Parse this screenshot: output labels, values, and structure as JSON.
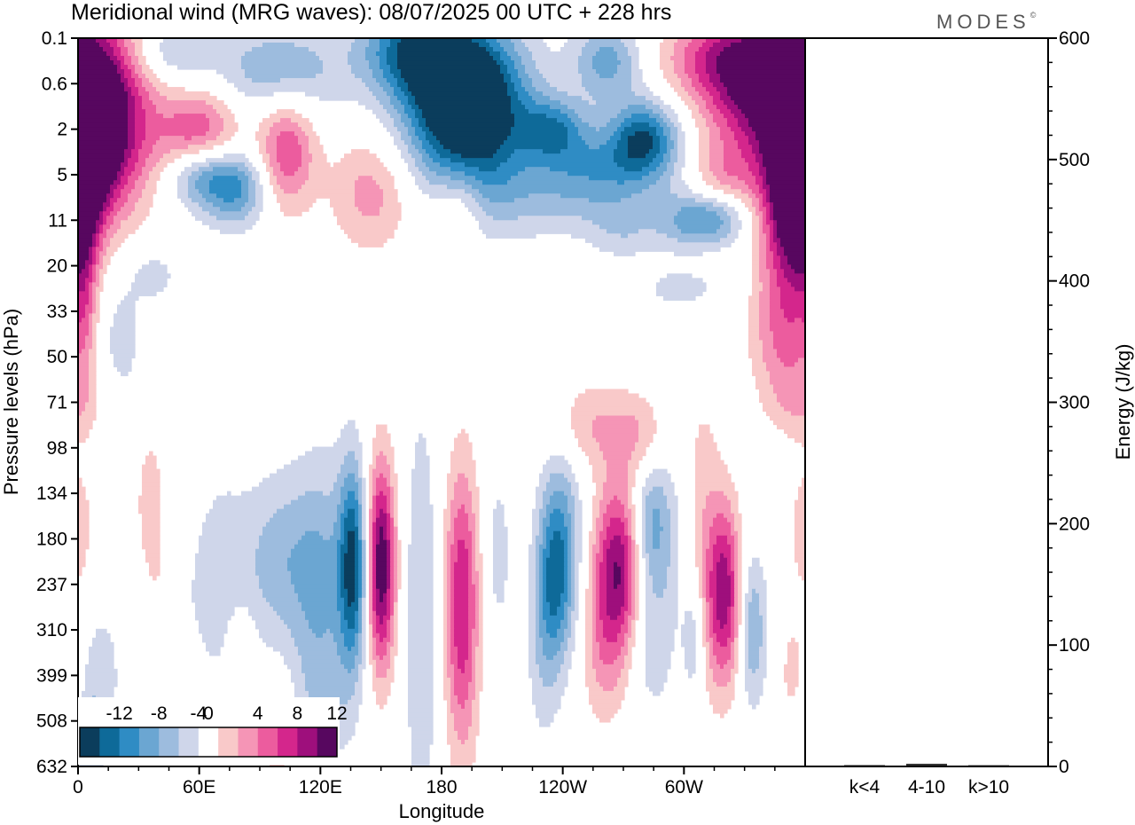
{
  "title": "Meridional wind (MRG waves):  08/07/2025  00 UTC  + 228 hrs",
  "brand": "MODES",
  "brand_mark": "©",
  "colors": {
    "neg": [
      "#0b3d5c",
      "#0e6a99",
      "#2f8cc4",
      "#6ba6d2",
      "#9dbcde",
      "#cfd6ea"
    ],
    "pos": [
      "#f9c9c9",
      "#f595b6",
      "#ec5c9e",
      "#d4268c",
      "#9e0f7c",
      "#57075f"
    ],
    "zero": "#ffffff"
  },
  "chart_data": [
    {
      "type": "heatmap",
      "variable": "Meridional wind",
      "xlabel": "Longitude",
      "ylabel": "Pressure levels (hPa)",
      "x_ticks": [
        "0",
        "60E",
        "120E",
        "180",
        "120W",
        "60W"
      ],
      "x_tick_values": [
        0,
        60,
        120,
        180,
        240,
        300
      ],
      "xlim": [
        0,
        360
      ],
      "y_ticks": [
        "0.1",
        "0.6",
        "2",
        "5",
        "11",
        "20",
        "33",
        "50",
        "71",
        "98",
        "134",
        "180",
        "237",
        "310",
        "399",
        "508",
        "632"
      ],
      "colorbar": {
        "labels": [
          "-12",
          "-8",
          "-4",
          "0",
          "4",
          "8",
          "12"
        ],
        "levels": [
          -14,
          -12,
          -10,
          -8,
          -6,
          -4,
          -2,
          2,
          4,
          6,
          8,
          10,
          12,
          14
        ]
      },
      "features": [
        {
          "lon": 10,
          "level": 2.1,
          "value": 14,
          "wx": 18,
          "wy": 1.3
        },
        {
          "lon": 22,
          "level": 0.2,
          "value": 4,
          "wx": 14,
          "wy": 0.8
        },
        {
          "lon": 0,
          "level": 4.2,
          "value": 6,
          "wx": 8,
          "wy": 1.2
        },
        {
          "lon": 60,
          "level": 2.1,
          "value": 8,
          "wx": 14,
          "wy": 0.7
        },
        {
          "lon": 103,
          "level": 2.5,
          "value": 8,
          "wx": 10,
          "wy": 0.9
        },
        {
          "lon": 145,
          "level": 3.4,
          "value": 5,
          "wx": 14,
          "wy": 0.9
        },
        {
          "lon": 190,
          "level": 3.4,
          "value": 3,
          "wx": 8,
          "wy": 0.6
        },
        {
          "lon": 182,
          "level": 4.1,
          "value": 3,
          "wx": 10,
          "wy": 0.5
        },
        {
          "lon": 265,
          "level": 2.2,
          "value": 3,
          "wx": 10,
          "wy": 0.6
        },
        {
          "lon": 340,
          "level": 1.0,
          "value": 14,
          "wx": 22,
          "wy": 1.1
        },
        {
          "lon": 360,
          "level": 2.2,
          "value": 11,
          "wx": 10,
          "wy": 1.4
        },
        {
          "lon": 350,
          "level": 3.9,
          "value": 8,
          "wx": 10,
          "wy": 1.2
        },
        {
          "lon": 315,
          "level": 0.4,
          "value": 5,
          "wx": 20,
          "wy": 0.6
        },
        {
          "lon": 320,
          "level": 3.0,
          "value": 4,
          "wx": 12,
          "wy": 0.5
        },
        {
          "lon": 350,
          "level": 6.5,
          "value": 6,
          "wx": 12,
          "wy": 1.0
        },
        {
          "lon": 358,
          "level": 8.0,
          "value": 3,
          "wx": 12,
          "wy": 0.6
        },
        {
          "lon": 190,
          "level": 1.2,
          "value": -14,
          "wx": 22,
          "wy": 1.1
        },
        {
          "lon": 165,
          "level": 0.2,
          "value": -9,
          "wx": 18,
          "wy": 0.7
        },
        {
          "lon": 195,
          "level": 2.1,
          "value": -7,
          "wx": 18,
          "wy": 1.3
        },
        {
          "lon": 235,
          "level": 2.0,
          "value": -8,
          "wx": 12,
          "wy": 0.5
        },
        {
          "lon": 278,
          "level": 2.2,
          "value": -12,
          "wx": 14,
          "wy": 0.6
        },
        {
          "lon": 260,
          "level": 2.8,
          "value": -5,
          "wx": 20,
          "wy": 0.6
        },
        {
          "lon": 262,
          "level": 0.5,
          "value": -7,
          "wx": 12,
          "wy": 0.6
        },
        {
          "lon": 100,
          "level": 0.7,
          "value": -6,
          "wx": 22,
          "wy": 0.7
        },
        {
          "lon": 40,
          "level": 0.3,
          "value": -5,
          "wx": 18,
          "wy": 0.5
        },
        {
          "lon": 60,
          "level": 3.0,
          "value": -7,
          "wx": 12,
          "wy": 0.5
        },
        {
          "lon": 78,
          "level": 3.3,
          "value": -8,
          "wx": 12,
          "wy": 0.6
        },
        {
          "lon": 235,
          "level": 3.4,
          "value": -4,
          "wx": 30,
          "wy": 0.7
        },
        {
          "lon": 300,
          "level": 4.0,
          "value": -4,
          "wx": 12,
          "wy": 0.5
        },
        {
          "lon": 315,
          "level": 4.0,
          "value": -6,
          "wx": 12,
          "wy": 0.4
        },
        {
          "lon": 270,
          "level": 4.2,
          "value": -3,
          "wx": 12,
          "wy": 0.5
        },
        {
          "lon": 38,
          "level": 5.2,
          "value": -3,
          "wx": 8,
          "wy": 0.4
        },
        {
          "lon": 20,
          "level": 6.6,
          "value": -3,
          "wx": 10,
          "wy": 1.2
        },
        {
          "lon": 300,
          "level": 5.5,
          "value": -3,
          "wx": 14,
          "wy": 0.3
        },
        {
          "lon": 4,
          "level": 5.9,
          "value": 3,
          "wx": 4,
          "wy": 1.2
        },
        {
          "lon": 208,
          "level": 11.3,
          "value": -2.8,
          "wx": 5,
          "wy": 1.5
        },
        {
          "lon": 250,
          "level": 8.5,
          "value": 4,
          "wx": 14,
          "wy": 0.7
        },
        {
          "lon": 280,
          "level": 8.7,
          "value": 4,
          "wx": 12,
          "wy": 0.7
        },
        {
          "lon": 282,
          "level": 10.7,
          "value": -6,
          "wx": 7,
          "wy": 1.0
        },
        {
          "lon": 240,
          "level": 11.0,
          "value": -5,
          "wx": 8,
          "wy": 1.8
        },
        {
          "lon": 290,
          "level": 11.5,
          "value": -3,
          "wx": 7,
          "wy": 2.5
        },
        {
          "lon": 280,
          "level": 13.0,
          "value": -3,
          "wx": 6,
          "wy": 1.2
        },
        {
          "lon": 310,
          "level": 11.0,
          "value": 3,
          "wx": 6,
          "wy": 2.5
        },
        {
          "lon": 360,
          "level": 10.8,
          "value": 3,
          "wx": 6,
          "wy": 1.2
        },
        {
          "lon": 136,
          "level": 11.6,
          "value": -12,
          "wx": 5,
          "wy": 1.6
        },
        {
          "lon": 150,
          "level": 11.6,
          "value": 14,
          "wx": 5,
          "wy": 1.6
        },
        {
          "lon": 121,
          "level": 12.0,
          "value": -5,
          "wx": 10,
          "wy": 2.0
        },
        {
          "lon": 100,
          "level": 11.5,
          "value": -5,
          "wx": 14,
          "wy": 1.4
        },
        {
          "lon": 40,
          "level": 12.5,
          "value": -3,
          "wx": 10,
          "wy": 2.2
        },
        {
          "lon": 70,
          "level": 12.0,
          "value": -3,
          "wx": 10,
          "wy": 1.8
        },
        {
          "lon": 170,
          "level": 12.8,
          "value": -4,
          "wx": 6,
          "wy": 3.5
        },
        {
          "lon": 190,
          "level": 12.0,
          "value": 8,
          "wx": 6,
          "wy": 2.0
        },
        {
          "lon": 190,
          "level": 14.0,
          "value": 3,
          "wx": 6,
          "wy": 2.0
        },
        {
          "lon": 236,
          "level": 11.8,
          "value": -7,
          "wx": 6,
          "wy": 1.3
        },
        {
          "lon": 230,
          "level": 13.5,
          "value": -3,
          "wx": 6,
          "wy": 1.5
        },
        {
          "lon": 268,
          "level": 11.6,
          "value": 12,
          "wx": 9,
          "wy": 1.3
        },
        {
          "lon": 260,
          "level": 13.5,
          "value": 4,
          "wx": 8,
          "wy": 1.2
        },
        {
          "lon": 320,
          "level": 12.2,
          "value": 11,
          "wx": 6,
          "wy": 1.4
        },
        {
          "lon": 334,
          "level": 13.0,
          "value": -6,
          "wx": 5,
          "wy": 1.2
        },
        {
          "lon": 305,
          "level": 13.2,
          "value": -4,
          "wx": 4,
          "wy": 1.0
        },
        {
          "lon": 40,
          "level": 12.0,
          "value": 4,
          "wx": 5,
          "wy": 2.3
        },
        {
          "lon": 33,
          "level": 10.5,
          "value": 3,
          "wx": 5,
          "wy": 1.5
        },
        {
          "lon": 80,
          "level": 13.8,
          "value": 3,
          "wx": 5,
          "wy": 1.0
        },
        {
          "lon": 120,
          "level": 15.0,
          "value": -3,
          "wx": 10,
          "wy": 1.2
        },
        {
          "lon": 100,
          "level": 15.6,
          "value": 3,
          "wx": 6,
          "wy": 1.0
        },
        {
          "lon": 120,
          "level": 16.5,
          "value": 3,
          "wx": 6,
          "wy": 1.0
        },
        {
          "lon": 10,
          "level": 14.0,
          "value": -3,
          "wx": 8,
          "wy": 1.2
        },
        {
          "lon": 5,
          "level": 15.5,
          "value": -3,
          "wx": 6,
          "wy": 1.0
        },
        {
          "lon": 355,
          "level": 14.0,
          "value": 3,
          "wx": 6,
          "wy": 1.0
        }
      ]
    },
    {
      "type": "bar",
      "categories": [
        "k<4",
        "4-10",
        "k>10"
      ],
      "values": [
        0.4,
        1.5,
        0.3
      ],
      "ylabel": "Energy (J/kg)",
      "ylim": [
        0,
        600
      ],
      "y_ticks": [
        "0",
        "100",
        "200",
        "300",
        "400",
        "500",
        "600"
      ]
    }
  ]
}
